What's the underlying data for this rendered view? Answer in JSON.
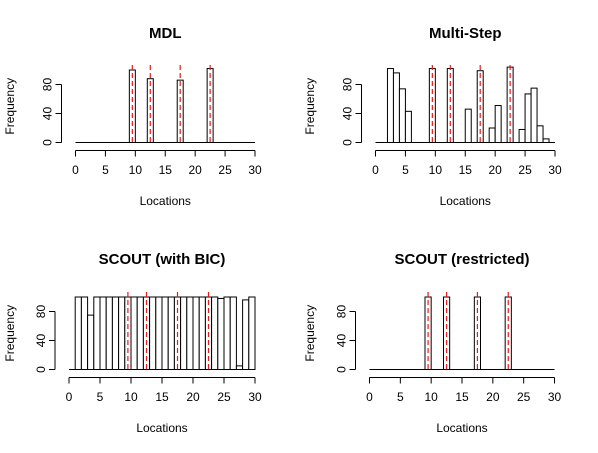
{
  "chart_data": [
    {
      "type": "bar",
      "title": "MDL",
      "xlabel": "Locations",
      "ylabel": "Frequency",
      "xlim": [
        0,
        30
      ],
      "ylim": [
        0,
        100
      ],
      "xticks": [
        0,
        5,
        10,
        15,
        20,
        25,
        30
      ],
      "yticks": [
        0,
        40,
        80
      ],
      "bar_width": 1,
      "bar_starts": [
        0,
        1,
        2,
        3,
        4,
        5,
        6,
        7,
        8,
        9,
        10,
        11,
        12,
        13,
        14,
        15,
        16,
        17,
        18,
        19,
        20,
        21,
        22,
        23,
        24,
        25,
        26,
        27,
        28,
        29
      ],
      "values": [
        0,
        0,
        0,
        0,
        0,
        0,
        0,
        0,
        0,
        100,
        0,
        0,
        88,
        0,
        0,
        0,
        0,
        86,
        0,
        0,
        0,
        0,
        102,
        0,
        0,
        0,
        0,
        0,
        0,
        0
      ],
      "reference_lines": [
        9,
        12,
        17,
        22
      ],
      "reference_color": "#e8191f"
    },
    {
      "type": "bar",
      "title": "Multi-Step",
      "xlabel": "Locations",
      "ylabel": "Frequency",
      "xlim": [
        0,
        30
      ],
      "ylim": [
        0,
        100
      ],
      "xticks": [
        0,
        5,
        10,
        15,
        20,
        25,
        30
      ],
      "yticks": [
        0,
        40,
        80
      ],
      "bar_width": 1,
      "bar_starts": [
        0,
        1,
        2,
        3,
        4,
        5,
        6,
        7,
        8,
        9,
        10,
        11,
        12,
        13,
        14,
        15,
        16,
        17,
        18,
        19,
        20,
        21,
        22,
        23,
        24,
        25,
        26,
        27,
        28,
        29
      ],
      "values": [
        0,
        0,
        102,
        96,
        74,
        43,
        0,
        0,
        0,
        102,
        0,
        0,
        102,
        0,
        0,
        46,
        0,
        99,
        0,
        20,
        51,
        0,
        104,
        0,
        18,
        67,
        75,
        23,
        5,
        0
      ],
      "reference_lines": [
        9,
        12,
        17,
        22
      ],
      "reference_color": "#e8191f"
    },
    {
      "type": "bar",
      "title": "SCOUT (with BIC)",
      "xlabel": "Locations",
      "ylabel": "Frequency",
      "xlim": [
        0,
        30
      ],
      "ylim": [
        0,
        100
      ],
      "xticks": [
        0,
        5,
        10,
        15,
        20,
        25,
        30
      ],
      "yticks": [
        0,
        40,
        80
      ],
      "bar_width": 1,
      "bar_starts": [
        0,
        1,
        2,
        3,
        4,
        5,
        6,
        7,
        8,
        9,
        10,
        11,
        12,
        13,
        14,
        15,
        16,
        17,
        18,
        19,
        20,
        21,
        22,
        23,
        24,
        25,
        26,
        27,
        28,
        29
      ],
      "values": [
        0,
        100,
        100,
        75,
        100,
        100,
        100,
        100,
        100,
        100,
        100,
        100,
        100,
        100,
        100,
        100,
        100,
        100,
        100,
        100,
        100,
        100,
        100,
        100,
        98,
        100,
        100,
        5,
        96,
        100
      ],
      "reference_lines": [
        9,
        12,
        17,
        22
      ],
      "reference_color": "#e8191f"
    },
    {
      "type": "bar",
      "title": "SCOUT (restricted)",
      "xlabel": "Locations",
      "ylabel": "Frequency",
      "xlim": [
        0,
        30
      ],
      "ylim": [
        0,
        100
      ],
      "xticks": [
        0,
        5,
        10,
        15,
        20,
        25,
        30
      ],
      "yticks": [
        0,
        40,
        80
      ],
      "bar_width": 1,
      "bar_starts": [
        0,
        1,
        2,
        3,
        4,
        5,
        6,
        7,
        8,
        9,
        10,
        11,
        12,
        13,
        14,
        15,
        16,
        17,
        18,
        19,
        20,
        21,
        22,
        23,
        24,
        25,
        26,
        27,
        28,
        29
      ],
      "values": [
        0,
        0,
        0,
        0,
        0,
        0,
        0,
        0,
        0,
        100,
        0,
        0,
        100,
        0,
        0,
        0,
        0,
        100,
        0,
        0,
        0,
        0,
        100,
        0,
        0,
        0,
        0,
        0,
        0,
        0
      ],
      "reference_lines": [
        9,
        12,
        17,
        22
      ],
      "reference_color": "#e8191f"
    }
  ]
}
